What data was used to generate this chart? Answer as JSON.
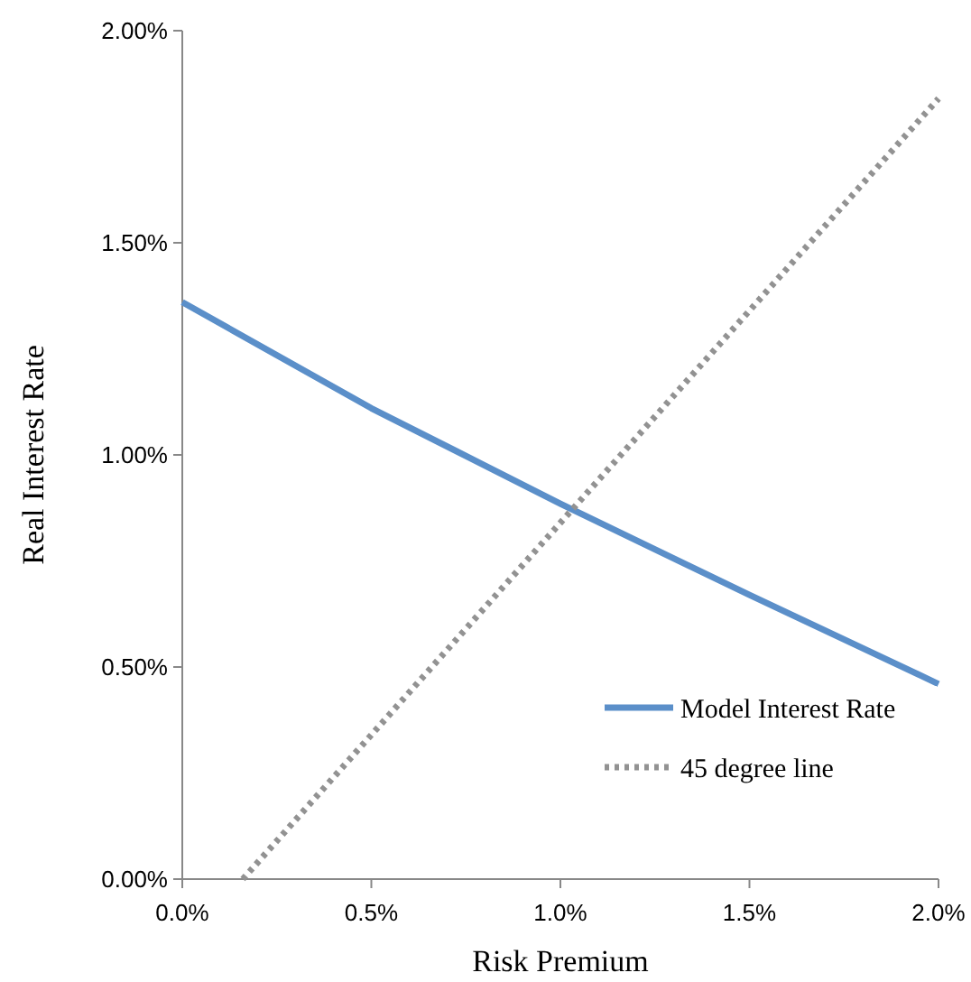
{
  "chart_data": {
    "type": "line",
    "xlabel": "Risk Premium",
    "ylabel": "Real Interest Rate",
    "xlim": [
      0,
      2
    ],
    "ylim": [
      0,
      2
    ],
    "xticks": [
      {
        "value": 0,
        "label": "0.0%"
      },
      {
        "value": 0.5,
        "label": "0.5%"
      },
      {
        "value": 1,
        "label": "1.0%"
      },
      {
        "value": 1.5,
        "label": "1.5%"
      },
      {
        "value": 2,
        "label": "2.0%"
      }
    ],
    "yticks": [
      {
        "value": 0,
        "label": "0.00%"
      },
      {
        "value": 0.5,
        "label": "0.50%"
      },
      {
        "value": 1,
        "label": "1.00%"
      },
      {
        "value": 1.5,
        "label": "1.50%"
      },
      {
        "value": 2,
        "label": "2.00%"
      }
    ],
    "grid": false,
    "legend": "bottom right",
    "marker": "none",
    "series": [
      {
        "name": "Model Interest Rate",
        "color": "#5b8fc9",
        "x": [
          0,
          0.5,
          1,
          1.5,
          2
        ],
        "values": [
          1.36,
          1.11,
          0.885,
          0.67,
          0.46
        ],
        "line_style": "solid"
      },
      {
        "name": "45 degree line",
        "color": "#929292",
        "x": [
          0.16,
          2
        ],
        "values": [
          0,
          1.84
        ],
        "line_style": "dotted"
      }
    ]
  }
}
